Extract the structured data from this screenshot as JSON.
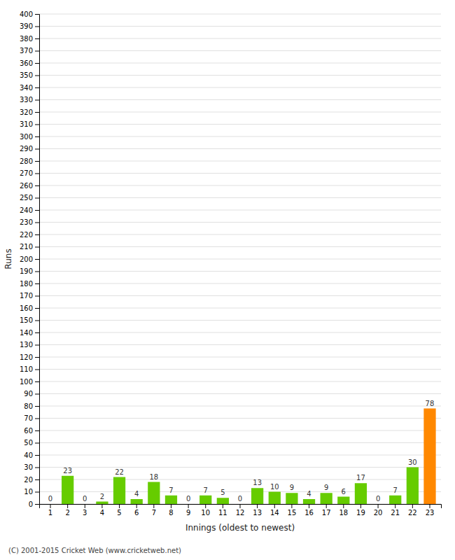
{
  "chart_data": {
    "type": "bar",
    "categories": [
      "1",
      "2",
      "3",
      "4",
      "5",
      "6",
      "7",
      "8",
      "9",
      "10",
      "11",
      "12",
      "13",
      "14",
      "15",
      "16",
      "17",
      "18",
      "19",
      "20",
      "21",
      "22",
      "23"
    ],
    "values": [
      0,
      23,
      0,
      2,
      22,
      4,
      18,
      7,
      0,
      7,
      5,
      0,
      13,
      10,
      9,
      4,
      9,
      6,
      17,
      0,
      7,
      30,
      78
    ],
    "colors": [
      "#66cc00",
      "#66cc00",
      "#66cc00",
      "#66cc00",
      "#66cc00",
      "#66cc00",
      "#66cc00",
      "#66cc00",
      "#66cc00",
      "#66cc00",
      "#66cc00",
      "#66cc00",
      "#66cc00",
      "#66cc00",
      "#66cc00",
      "#66cc00",
      "#66cc00",
      "#66cc00",
      "#66cc00",
      "#66cc00",
      "#66cc00",
      "#66cc00",
      "#ff8800"
    ],
    "xlabel": "Innings (oldest to newest)",
    "ylabel": "Runs",
    "ylim": [
      0,
      400
    ],
    "yticks": [
      0,
      10,
      20,
      30,
      40,
      50,
      60,
      70,
      80,
      90,
      100,
      110,
      120,
      130,
      140,
      150,
      160,
      170,
      180,
      190,
      200,
      210,
      220,
      230,
      240,
      250,
      260,
      270,
      280,
      290,
      300,
      310,
      320,
      330,
      340,
      350,
      360,
      370,
      380,
      390,
      400
    ],
    "grid": true,
    "data_labels": true,
    "annotations": [
      "(C) 2001-2015 Cricket Web (www.cricketweb.net)"
    ]
  }
}
